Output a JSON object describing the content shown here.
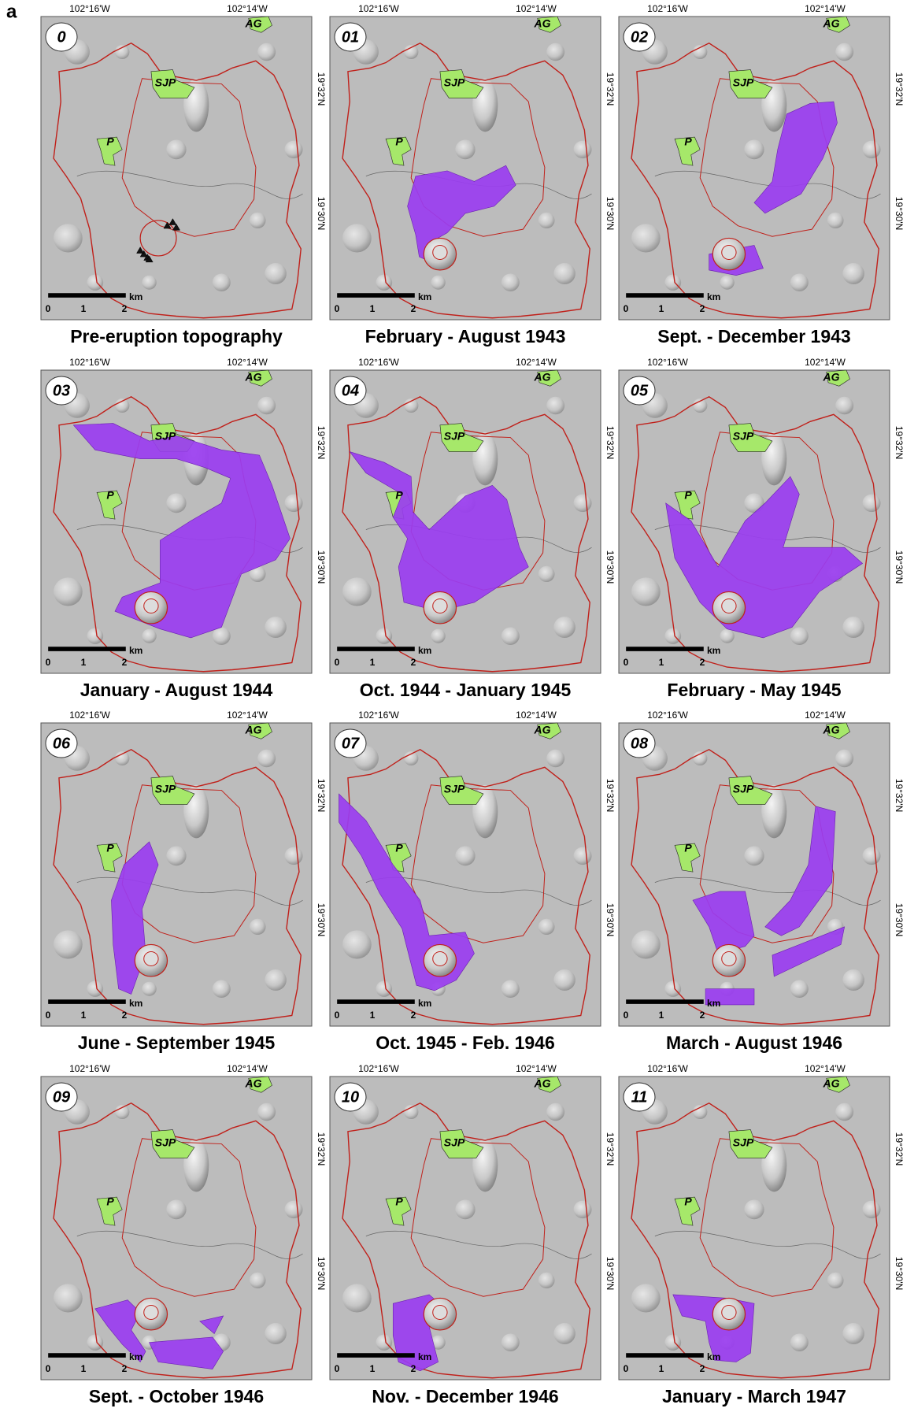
{
  "figure_label": "a",
  "panels": [
    {
      "number": "0",
      "caption": "Pre-eruption topography",
      "lon_labels": [
        "102°16'W",
        "102°14'W"
      ],
      "lat_labels": [
        "19°32'N",
        "19°30'N"
      ],
      "places": [
        "AG",
        "SJP",
        "P"
      ],
      "scale": {
        "unit": "km",
        "ticks": [
          "0",
          "1",
          "2"
        ]
      }
    },
    {
      "number": "01",
      "caption": "February - August 1943",
      "lon_labels": [
        "102°16'W",
        "102°14'W"
      ],
      "lat_labels": [
        "19°32'N",
        "19°30'N"
      ],
      "places": [
        "AG",
        "SJP",
        "P"
      ],
      "scale": {
        "unit": "km",
        "ticks": [
          "0",
          "1",
          "2"
        ]
      }
    },
    {
      "number": "02",
      "caption": "Sept. - December 1943",
      "lon_labels": [
        "102°16'W",
        "102°14'W"
      ],
      "lat_labels": [
        "19°32'N",
        "19°30'N"
      ],
      "places": [
        "AG",
        "SJP",
        "P"
      ],
      "scale": {
        "unit": "km",
        "ticks": [
          "0",
          "1",
          "2"
        ]
      }
    },
    {
      "number": "03",
      "caption": "January - August 1944",
      "lon_labels": [
        "102°16'W",
        "102°14'W"
      ],
      "lat_labels": [
        "19°32'N",
        "19°30'N"
      ],
      "places": [
        "AG",
        "SJP",
        "P"
      ],
      "scale": {
        "unit": "km",
        "ticks": [
          "0",
          "1",
          "2"
        ]
      }
    },
    {
      "number": "04",
      "caption": "Oct. 1944 - January 1945",
      "lon_labels": [
        "102°16'W",
        "102°14'W"
      ],
      "lat_labels": [
        "19°32'N",
        "19°30'N"
      ],
      "places": [
        "AG",
        "SJP",
        "P"
      ],
      "scale": {
        "unit": "km",
        "ticks": [
          "0",
          "1",
          "2"
        ]
      }
    },
    {
      "number": "05",
      "caption": "February - May 1945",
      "lon_labels": [
        "102°16'W",
        "102°14'W"
      ],
      "lat_labels": [
        "19°32'N",
        "19°30'N"
      ],
      "places": [
        "AG",
        "SJP",
        "P"
      ],
      "scale": {
        "unit": "km",
        "ticks": [
          "0",
          "1",
          "2"
        ]
      }
    },
    {
      "number": "06",
      "caption": "June - September 1945",
      "lon_labels": [
        "102°16'W",
        "102°14'W"
      ],
      "lat_labels": [
        "19°32'N",
        "19°30'N"
      ],
      "places": [
        "AG",
        "SJP",
        "P"
      ],
      "scale": {
        "unit": "km",
        "ticks": [
          "0",
          "1",
          "2"
        ]
      }
    },
    {
      "number": "07",
      "caption": "Oct. 1945 - Feb. 1946",
      "lon_labels": [
        "102°16'W",
        "102°14'W"
      ],
      "lat_labels": [
        "19°32'N",
        "19°30'N"
      ],
      "places": [
        "AG",
        "SJP",
        "P"
      ],
      "scale": {
        "unit": "km",
        "ticks": [
          "0",
          "1",
          "2"
        ]
      }
    },
    {
      "number": "08",
      "caption": "March - August 1946",
      "lon_labels": [
        "102°16'W",
        "102°14'W"
      ],
      "lat_labels": [
        "19°32'N",
        "19°30'N"
      ],
      "places": [
        "AG",
        "SJP",
        "P"
      ],
      "scale": {
        "unit": "km",
        "ticks": [
          "0",
          "1",
          "2"
        ]
      }
    },
    {
      "number": "09",
      "caption": "Sept. - October 1946",
      "lon_labels": [
        "102°16'W",
        "102°14'W"
      ],
      "lat_labels": [
        "19°32'N",
        "19°30'N"
      ],
      "places": [
        "AG",
        "SJP",
        "P"
      ],
      "scale": {
        "unit": "km",
        "ticks": [
          "0",
          "1",
          "2"
        ]
      }
    },
    {
      "number": "10",
      "caption": "Nov. - December 1946",
      "lon_labels": [
        "102°16'W",
        "102°14'W"
      ],
      "lat_labels": [
        "19°32'N",
        "19°30'N"
      ],
      "places": [
        "AG",
        "SJP",
        "P"
      ],
      "scale": {
        "unit": "km",
        "ticks": [
          "0",
          "1",
          "2"
        ]
      }
    },
    {
      "number": "11",
      "caption": "January - March 1947",
      "lon_labels": [
        "102°16'W",
        "102°14'W"
      ],
      "lat_labels": [
        "19°32'N",
        "19°30'N"
      ],
      "places": [
        "AG",
        "SJP",
        "P"
      ],
      "scale": {
        "unit": "km",
        "ticks": [
          "0",
          "1",
          "2"
        ]
      }
    }
  ]
}
